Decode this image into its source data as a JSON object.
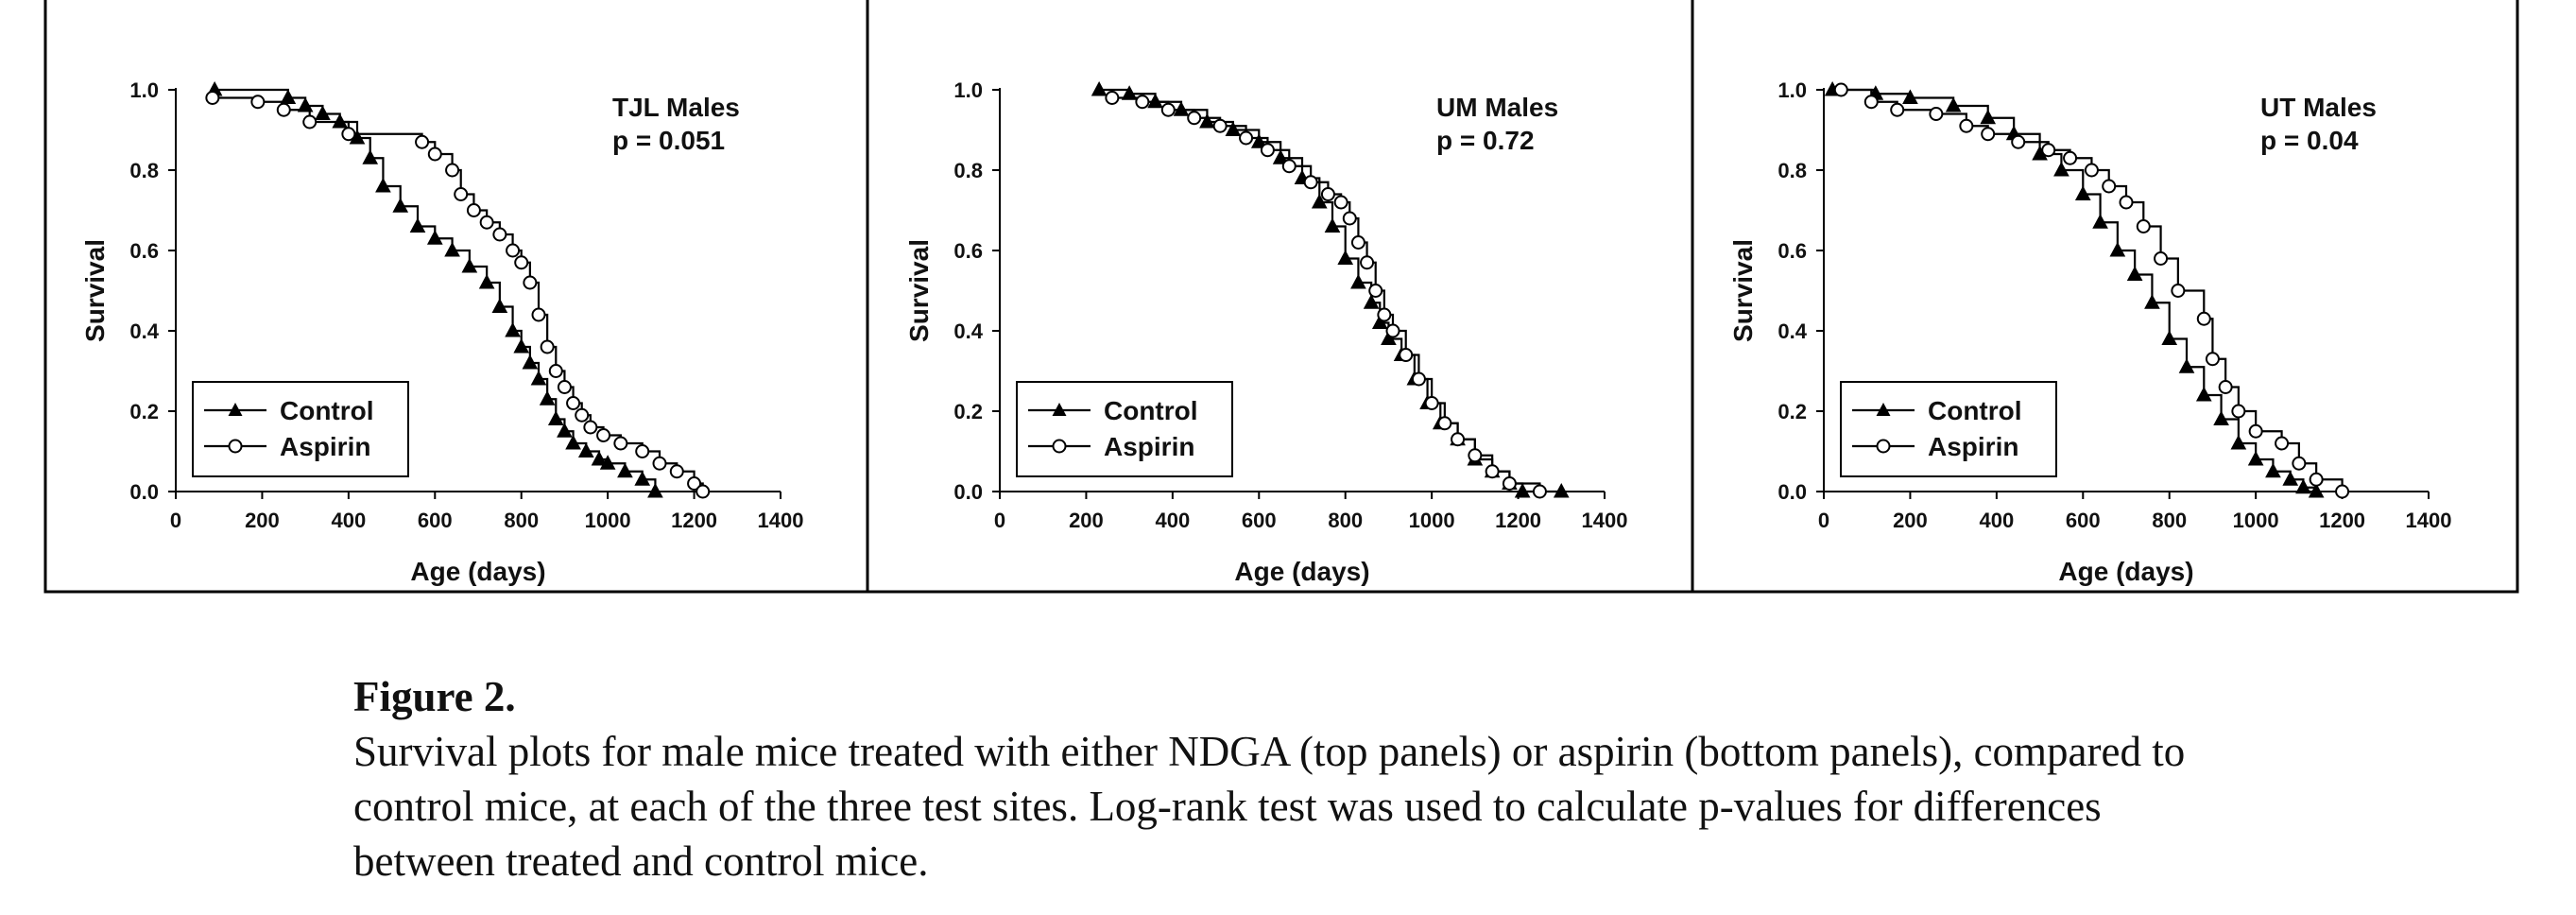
{
  "figure": {
    "label": "Figure 2.",
    "caption": "Survival plots for male mice treated with either NDGA (top panels) or aspirin (bottom panels), compared to control mice, at each of the three test sites. Log-rank test was used to calculate p-values for differences between treated and control mice."
  },
  "chart_data": [
    {
      "type": "line",
      "title": "TJL Males",
      "annotation": "p = 0.051",
      "xlabel": "Age (days)",
      "ylabel": "Survival",
      "xlim": [
        0,
        1400
      ],
      "ylim": [
        0,
        1.0
      ],
      "xticks": [
        0,
        200,
        400,
        600,
        800,
        1000,
        1200,
        1400
      ],
      "yticks": [
        "0.0",
        "0.2",
        "0.4",
        "0.6",
        "0.8",
        "1.0"
      ],
      "grid": false,
      "legend": "bottom-left",
      "series": [
        {
          "name": "Control",
          "marker": "triangle",
          "x": [
            90,
            260,
            300,
            340,
            380,
            420,
            450,
            480,
            520,
            560,
            600,
            640,
            680,
            720,
            750,
            780,
            800,
            820,
            840,
            860,
            880,
            900,
            920,
            950,
            980,
            1000,
            1040,
            1080,
            1110
          ],
          "y": [
            1.0,
            0.98,
            0.96,
            0.94,
            0.92,
            0.88,
            0.83,
            0.76,
            0.71,
            0.66,
            0.63,
            0.6,
            0.56,
            0.52,
            0.46,
            0.4,
            0.36,
            0.32,
            0.28,
            0.23,
            0.18,
            0.15,
            0.12,
            0.1,
            0.08,
            0.07,
            0.05,
            0.03,
            0.0
          ]
        },
        {
          "name": "Aspirin",
          "marker": "circle",
          "x": [
            85,
            190,
            250,
            310,
            400,
            570,
            600,
            640,
            660,
            690,
            720,
            750,
            780,
            800,
            820,
            840,
            860,
            880,
            900,
            920,
            940,
            960,
            990,
            1030,
            1080,
            1120,
            1160,
            1200,
            1220
          ],
          "y": [
            0.98,
            0.97,
            0.95,
            0.92,
            0.89,
            0.87,
            0.84,
            0.8,
            0.74,
            0.7,
            0.67,
            0.64,
            0.6,
            0.57,
            0.52,
            0.44,
            0.36,
            0.3,
            0.26,
            0.22,
            0.19,
            0.16,
            0.14,
            0.12,
            0.1,
            0.07,
            0.05,
            0.02,
            0.0
          ]
        }
      ]
    },
    {
      "type": "line",
      "title": "UM Males",
      "annotation": "p = 0.72",
      "xlabel": "Age (days)",
      "ylabel": "Survival",
      "xlim": [
        0,
        1400
      ],
      "ylim": [
        0,
        1.0
      ],
      "xticks": [
        0,
        200,
        400,
        600,
        800,
        1000,
        1200,
        1400
      ],
      "yticks": [
        "0.0",
        "0.2",
        "0.4",
        "0.6",
        "0.8",
        "1.0"
      ],
      "grid": false,
      "legend": "bottom-left",
      "series": [
        {
          "name": "Control",
          "marker": "triangle",
          "x": [
            230,
            300,
            360,
            420,
            480,
            540,
            600,
            650,
            700,
            740,
            770,
            800,
            830,
            860,
            880,
            900,
            930,
            960,
            990,
            1020,
            1060,
            1100,
            1140,
            1180,
            1210,
            1300
          ],
          "y": [
            1.0,
            0.99,
            0.97,
            0.95,
            0.92,
            0.9,
            0.87,
            0.83,
            0.78,
            0.72,
            0.66,
            0.58,
            0.52,
            0.47,
            0.42,
            0.38,
            0.34,
            0.28,
            0.22,
            0.17,
            0.13,
            0.08,
            0.05,
            0.02,
            0.0,
            0.0
          ]
        },
        {
          "name": "Aspirin",
          "marker": "circle",
          "x": [
            260,
            330,
            390,
            450,
            510,
            570,
            620,
            670,
            720,
            760,
            790,
            810,
            830,
            850,
            870,
            890,
            910,
            940,
            970,
            1000,
            1030,
            1060,
            1100,
            1140,
            1180,
            1250
          ],
          "y": [
            0.98,
            0.97,
            0.95,
            0.93,
            0.91,
            0.88,
            0.85,
            0.81,
            0.77,
            0.74,
            0.72,
            0.68,
            0.62,
            0.57,
            0.5,
            0.44,
            0.4,
            0.34,
            0.28,
            0.22,
            0.17,
            0.13,
            0.09,
            0.05,
            0.02,
            0.0
          ]
        }
      ]
    },
    {
      "type": "line",
      "title": "UT Males",
      "annotation": "p = 0.04",
      "xlabel": "Age (days)",
      "ylabel": "Survival",
      "xlim": [
        0,
        1400
      ],
      "ylim": [
        0,
        1.0
      ],
      "xticks": [
        0,
        200,
        400,
        600,
        800,
        1000,
        1200,
        1400
      ],
      "yticks": [
        "0.0",
        "0.2",
        "0.4",
        "0.6",
        "0.8",
        "1.0"
      ],
      "grid": false,
      "legend": "bottom-left",
      "series": [
        {
          "name": "Control",
          "marker": "triangle",
          "x": [
            20,
            120,
            200,
            300,
            380,
            440,
            500,
            550,
            600,
            640,
            680,
            720,
            760,
            800,
            840,
            880,
            920,
            960,
            1000,
            1040,
            1080,
            1110,
            1140
          ],
          "y": [
            1.0,
            0.99,
            0.98,
            0.96,
            0.93,
            0.89,
            0.84,
            0.8,
            0.74,
            0.67,
            0.6,
            0.54,
            0.47,
            0.38,
            0.31,
            0.24,
            0.18,
            0.12,
            0.08,
            0.05,
            0.03,
            0.01,
            0.0
          ]
        },
        {
          "name": "Aspirin",
          "marker": "circle",
          "x": [
            40,
            110,
            170,
            260,
            330,
            380,
            450,
            520,
            570,
            620,
            660,
            700,
            740,
            780,
            820,
            880,
            900,
            930,
            960,
            1000,
            1060,
            1100,
            1140,
            1200
          ],
          "y": [
            1.0,
            0.97,
            0.95,
            0.94,
            0.91,
            0.89,
            0.87,
            0.85,
            0.83,
            0.8,
            0.76,
            0.72,
            0.66,
            0.58,
            0.5,
            0.43,
            0.33,
            0.26,
            0.2,
            0.15,
            0.12,
            0.07,
            0.03,
            0.0
          ]
        }
      ]
    }
  ]
}
